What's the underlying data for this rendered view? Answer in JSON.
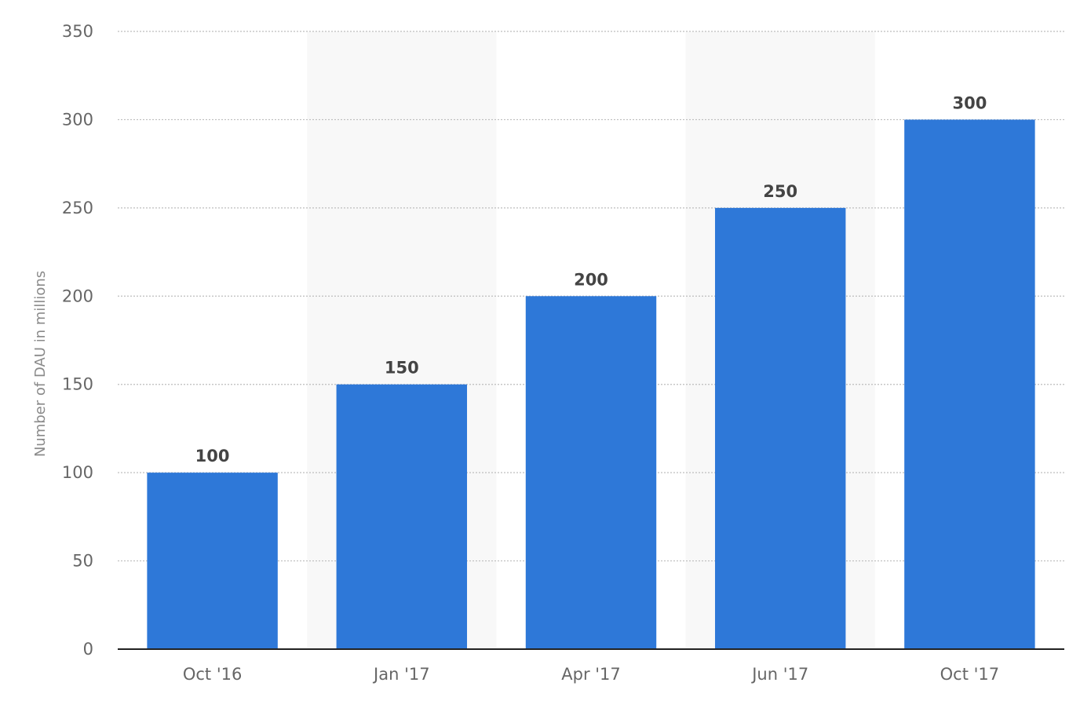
{
  "chart_data": {
    "type": "bar",
    "categories": [
      "Oct '16",
      "Jan '17",
      "Apr '17",
      "Jun '17",
      "Oct '17"
    ],
    "values": [
      100,
      150,
      200,
      250,
      300
    ],
    "title": "",
    "xlabel": "",
    "ylabel": "Number of DAU in millions",
    "ylim": [
      0,
      350
    ],
    "yticks": [
      0,
      50,
      100,
      150,
      200,
      250,
      300,
      350
    ],
    "grid": true,
    "legend": "none",
    "bar_color": "#2e78d8",
    "band_color": "#f8f8f8"
  }
}
